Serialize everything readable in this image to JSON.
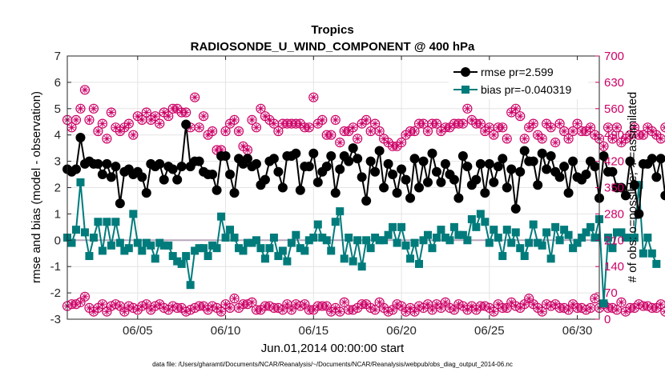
{
  "chart_data": {
    "type": "line",
    "title": "Tropics",
    "subtitle": "RADIOSONDE_U_WIND_COMPONENT @ 400 hPa",
    "xlabel": "Jun.01,2014 00:00:00 start",
    "ylabel": "rmse and bias (model - observation)",
    "ylabel_right": "# of obs: o=possible; ∗=assimilated",
    "footer": "data file: /Users/gharamti/Documents/NCAR/Reanalysis/~/Documents/NCAR/Reanalysis/webpub/obs_diag_output_2014-06.nc",
    "xlim": [
      1,
      31.25
    ],
    "ylim": [
      -3,
      7
    ],
    "ylim_right": [
      0,
      700
    ],
    "x_ticks": [
      5,
      10,
      15,
      20,
      25,
      30
    ],
    "x_tick_labels": [
      "06/05",
      "06/10",
      "06/15",
      "06/20",
      "06/25",
      "06/30"
    ],
    "y_ticks": [
      -3,
      -2,
      -1,
      0,
      1,
      2,
      3,
      4,
      5,
      6,
      7
    ],
    "y_tick_labels": [
      "-3",
      "-2",
      "-1",
      "0",
      "1",
      "2",
      "3",
      "4",
      "5",
      "6",
      "7"
    ],
    "y2_ticks": [
      0,
      70,
      140,
      210,
      280,
      350,
      420,
      490,
      560,
      630,
      700
    ],
    "y2_tick_labels": [
      "0",
      "70",
      "140",
      "210",
      "280",
      "350",
      "420",
      "490",
      "560",
      "630",
      "700"
    ],
    "zero_line": 0,
    "x_start": 1.0,
    "x_step": 0.25,
    "series": [
      {
        "name": "rmse",
        "legend": "rmse pr=2.599",
        "values": [
          2.7,
          2.6,
          2.7,
          3.9,
          2.9,
          3.0,
          2.9,
          2.9,
          2.5,
          2.9,
          2.4,
          2.8,
          1.4,
          2.6,
          2.7,
          2.5,
          2.6,
          2.4,
          1.8,
          2.9,
          2.8,
          2.9,
          2.3,
          2.8,
          2.7,
          2.3,
          2.8,
          4.4,
          2.8,
          3.0,
          3.0,
          2.6,
          2.5,
          2.5,
          1.9,
          3.2,
          3.2,
          2.5,
          1.8,
          3.1,
          2.9,
          3.1,
          2.8,
          2.9,
          2.1,
          2.3,
          3.0,
          3.1,
          2.6,
          2.0,
          3.2,
          3.2,
          3.3,
          1.9,
          2.8,
          2.8,
          3.3,
          2.2,
          2.6,
          2.8,
          3.2,
          1.8,
          2.7,
          3.2,
          3.0,
          3.5,
          3.1,
          2.4,
          1.5,
          3.0,
          2.6,
          3.4,
          2.0,
          2.9,
          2.5,
          1.8,
          2.7,
          2.3,
          1.6,
          3.1,
          2.0,
          3.0,
          2.2,
          3.3,
          2.6,
          2.2,
          2.9,
          2.5,
          2.3,
          1.6,
          3.2,
          2.8,
          2.1,
          2.3,
          2.9,
          1.8,
          2.9,
          2.2,
          2.8,
          3.1,
          2.0,
          2.7,
          1.2,
          2.6,
          3.4,
          3.0,
          3.0,
          2.1,
          3.3,
          2.7,
          3.2,
          2.6,
          2.4,
          2.8,
          1.8,
          3.0,
          2.4,
          2.3,
          2.5,
          3.0,
          2.8,
          1.6,
          3.2,
          2.6,
          2.6,
          2.0,
          2.0,
          1.7,
          3.0,
          2.1,
          1.0,
          2.9,
          2.9,
          3.1,
          2.4,
          3.1,
          1.7
        ]
      },
      {
        "name": "bias",
        "legend": "bias pr=-0.040319",
        "values": [
          0.1,
          -0.1,
          0.4,
          2.2,
          0.3,
          -0.6,
          0.1,
          0.7,
          -0.4,
          0.7,
          -0.2,
          0.7,
          -0.1,
          -0.4,
          -0.3,
          1.0,
          -0.1,
          -0.4,
          -0.1,
          -0.2,
          -0.7,
          -0.1,
          -0.2,
          -0.2,
          -0.6,
          -0.8,
          -0.9,
          -0.6,
          -1.7,
          -0.4,
          -0.3,
          -0.3,
          -0.6,
          -0.2,
          -0.3,
          0.9,
          0.1,
          0.4,
          0.1,
          -0.3,
          -0.4,
          -0.1,
          -0.1,
          0.0,
          -0.3,
          -0.7,
          -0.3,
          0.1,
          -0.6,
          -0.4,
          -0.8,
          -0.1,
          0.2,
          -0.3,
          -0.4,
          0.0,
          0.1,
          0.6,
          0.1,
          0.0,
          -0.4,
          0.7,
          1.1,
          -0.7,
          0.1,
          -0.8,
          0.0,
          -1.0,
          0.0,
          -0.3,
          0.1,
          0.0,
          0.0,
          0.2,
          0.5,
          -0.1,
          0.5,
          -0.2,
          -0.7,
          -0.1,
          -0.9,
          0.0,
          0.2,
          -0.3,
          0.1,
          0.4,
          0.1,
          0.0,
          0.5,
          0.2,
          0.2,
          0.0,
          0.8,
          0.5,
          1.0,
          0.7,
          -0.1,
          0.4,
          0.1,
          -0.6,
          0.4,
          -0.1,
          0.3,
          -0.3,
          -0.6,
          -0.1,
          0.6,
          -0.1,
          -0.2,
          0.3,
          -0.7,
          0.5,
          0.0,
          0.4,
          0.2,
          -0.3,
          -0.1,
          0.1,
          0.3,
          0.5,
          0.1,
          0.8,
          -2.4,
          0.1,
          -0.3,
          0.3,
          0.3,
          0.1,
          0.1,
          0.1,
          2.1,
          -0.5,
          0.1,
          -0.5,
          -0.9
        ]
      },
      {
        "name": "possible",
        "values": [
          530,
          510,
          530,
          560,
          610,
          530,
          560,
          500,
          520,
          480,
          550,
          510,
          500,
          510,
          520,
          490,
          540,
          530,
          550,
          530,
          540,
          520,
          550,
          540,
          560,
          560,
          550,
          550,
          510,
          590,
          510,
          540,
          490,
          500,
          450,
          450,
          500,
          520,
          530,
          500,
          460,
          450,
          530,
          510,
          560,
          540,
          530,
          520,
          500,
          520,
          520,
          520,
          520,
          520,
          510,
          510,
          590,
          520,
          530,
          490,
          490,
          530,
          470,
          500,
          500,
          510,
          480,
          520,
          530,
          500,
          520,
          500,
          480,
          470,
          460,
          460,
          470,
          490,
          500,
          500,
          520,
          520,
          500,
          520,
          520,
          500,
          510,
          510,
          520,
          520,
          520,
          560,
          530,
          520,
          520,
          500,
          510,
          490,
          510,
          510,
          480,
          550,
          560,
          540,
          480,
          510,
          520,
          490,
          480,
          520,
          510,
          470,
          520,
          500,
          480,
          500,
          520,
          500,
          500,
          510,
          490,
          480,
          460,
          510,
          480,
          510,
          470,
          480,
          490,
          510,
          490,
          490,
          510,
          500,
          490,
          480,
          510,
          500,
          520,
          530,
          500
        ]
      },
      {
        "name": "assimilated",
        "values": [
          35,
          40,
          40,
          45,
          60,
          30,
          20,
          30,
          40,
          20,
          35,
          40,
          35,
          20,
          35,
          30,
          25,
          35,
          40,
          25,
          35,
          40,
          30,
          25,
          35,
          30,
          30,
          20,
          25,
          30,
          35,
          35,
          25,
          35,
          30,
          20,
          40,
          30,
          55,
          30,
          40,
          40,
          45,
          25,
          25,
          35,
          35,
          30,
          30,
          25,
          40,
          25,
          40,
          35,
          40,
          25,
          25,
          35,
          35,
          35,
          20,
          30,
          20,
          45,
          25,
          25,
          30,
          40,
          40,
          30,
          25,
          45,
          30,
          20,
          25,
          40,
          35,
          20,
          30,
          20,
          35,
          30,
          40,
          25,
          40,
          30,
          45,
          30,
          25,
          40,
          35,
          25,
          35,
          25,
          35,
          35,
          30,
          20,
          40,
          30,
          30,
          45,
          35,
          30,
          40,
          55,
          40,
          30,
          20,
          40,
          35,
          40,
          30,
          30,
          25,
          40,
          30,
          30,
          25,
          30,
          55,
          30,
          40,
          30,
          30,
          25,
          45,
          20,
          30,
          30,
          40,
          35,
          35,
          30,
          30,
          40,
          20,
          35,
          25,
          20,
          15
        ]
      }
    ],
    "colors": {
      "rmse": "#000000",
      "bias": "#007b7b",
      "obs": "#cc0066",
      "zero_line": "#b8a6bc",
      "grid": "#e4e4e4",
      "axis": "#262626"
    }
  }
}
